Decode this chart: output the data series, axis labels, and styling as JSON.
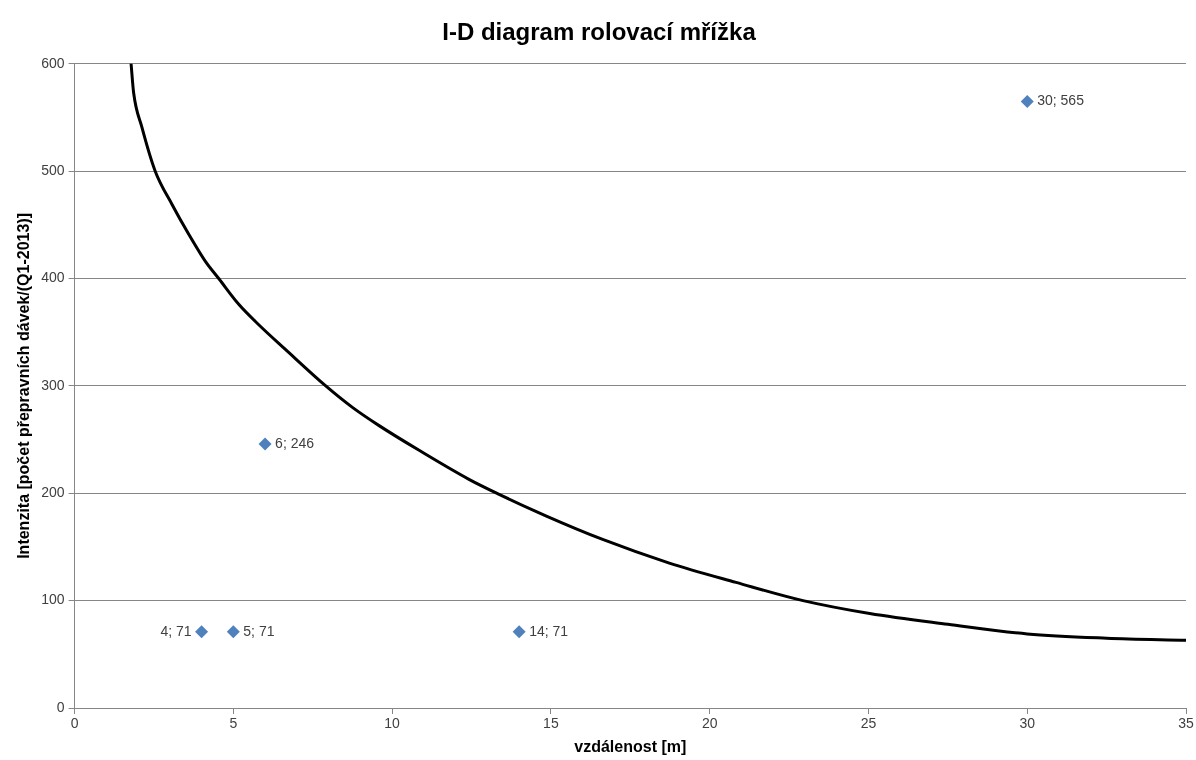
{
  "chart_data": {
    "type": "scatter",
    "title": "I-D diagram rolovací mřížka",
    "xlabel": "vzdálenost [m]",
    "ylabel": "Intenzita [počet přepravních dávek/(Q1-2013)]",
    "xlim": [
      0,
      35
    ],
    "xticks": [
      0,
      5,
      10,
      15,
      20,
      25,
      30,
      35
    ],
    "ylim": [
      0,
      600
    ],
    "yticks": [
      0,
      100,
      200,
      300,
      400,
      500,
      600
    ],
    "grid": "y",
    "marker": "diamond",
    "series": [
      {
        "type": "scatter",
        "color": "#4f81bd",
        "x": [
          4,
          5,
          6,
          14,
          30
        ],
        "values": [
          71,
          71,
          246,
          71,
          565
        ],
        "value_labels": [
          "4; 71",
          "5; 71",
          "6; 246",
          "14; 71",
          "30; 565"
        ]
      },
      {
        "type": "line",
        "color": "#000000",
        "marker": "none",
        "x": [
          1.78,
          1.86,
          2.12,
          2.54,
          3.07,
          3.6,
          4.12,
          4.54,
          5.17,
          5.8,
          6.64,
          7.91,
          8.75,
          9.59,
          10.85,
          12.42,
          13.37,
          14.84,
          16.63,
          18.73,
          20.83,
          22.94,
          25.04,
          27.5,
          30,
          32.5,
          35
        ],
        "values": [
          600,
          573,
          541,
          500,
          469,
          441,
          416,
          400,
          376,
          357,
          334,
          300,
          280,
          263,
          240,
          213,
          199,
          179,
          157,
          135,
          117,
          100,
          88,
          78,
          69,
          65,
          63
        ]
      }
    ]
  }
}
